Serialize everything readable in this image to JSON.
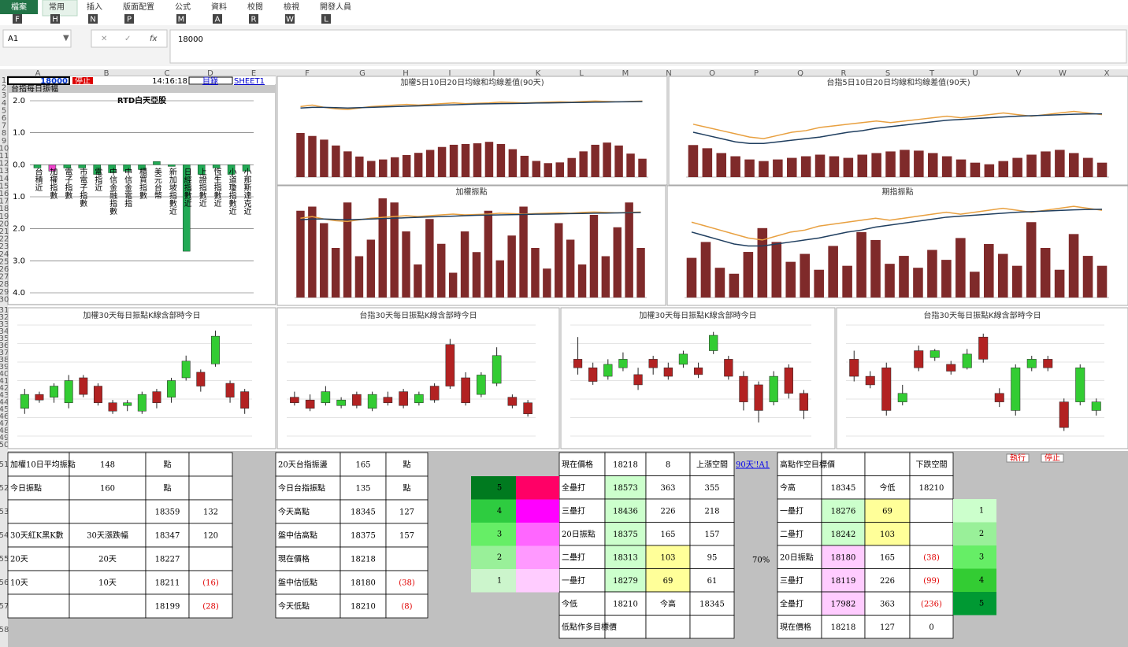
{
  "ribbon": {
    "tabs": [
      {
        "label": "檔案",
        "key": "F"
      },
      {
        "label": "常用",
        "key": "H"
      },
      {
        "label": "插入",
        "key": "N"
      },
      {
        "label": "版面配置",
        "key": "P"
      },
      {
        "label": "公式",
        "key": "M"
      },
      {
        "label": "資料",
        "key": "A"
      },
      {
        "label": "校閱",
        "key": "R"
      },
      {
        "label": "檢視",
        "key": "W"
      },
      {
        "label": "開發人員",
        "key": "L"
      }
    ]
  },
  "formula_bar": {
    "name_box": "A1",
    "formula": "18000"
  },
  "columns": [
    "A",
    "B",
    "C",
    "D",
    "E",
    "F",
    "G",
    "H",
    "I",
    "J",
    "K",
    "L",
    "M",
    "N",
    "O",
    "P",
    "Q",
    "R",
    "S",
    "T",
    "U",
    "V",
    "W",
    "X"
  ],
  "rows": [
    1,
    2,
    3,
    4,
    5,
    6,
    7,
    8,
    9,
    10,
    11,
    12,
    13,
    14,
    15,
    16,
    17,
    18,
    19,
    20,
    21,
    22,
    23,
    24,
    25,
    26,
    27,
    28,
    29,
    30,
    31,
    32,
    33,
    34,
    35,
    36,
    37,
    38,
    39,
    40,
    41,
    42,
    43,
    44,
    45,
    46,
    47,
    48,
    49,
    50,
    51,
    52,
    53,
    54,
    55,
    56,
    57,
    58
  ],
  "header_cells": {
    "a1": 18000,
    "stop_button": "停止",
    "time": "14:16:18",
    "link": "目錄",
    "sheet": "SHEET1",
    "panel_title": "台指每日振幅"
  },
  "charts": [
    {
      "type": "bar",
      "title": "RTD白天亞股",
      "categories": [
        "台積近",
        "加權指數",
        "電子指數",
        "市電子指數",
        "電指近",
        "中信金融指數",
        "中信金電指",
        "櫃買指數",
        "美元台幣",
        "新加坡指數近",
        "日經指數近",
        "上證指數近",
        "恆生指數近",
        "小道瓊指數近",
        "小那斯達克近"
      ],
      "values": [
        -0.1,
        -0.2,
        -0.1,
        -0.1,
        -0.3,
        -0.25,
        -0.2,
        -0.15,
        0.1,
        -0.05,
        -2.7,
        -0.3,
        -0.1,
        -0.3,
        -0.2
      ],
      "colors": [
        "#22aa55",
        "#ee44cc",
        "#22aa55",
        "#22aa55",
        "#22aa55",
        "#22aa55",
        "#22aa55",
        "#22aa55",
        "#22aa55",
        "#22aa55",
        "#22aa55",
        "#22aa55",
        "#22aa55",
        "#22aa55",
        "#22aa55"
      ],
      "ylim": [
        -4,
        2
      ],
      "yticks": [
        {
          "value": 2,
          "label": "2.0"
        },
        {
          "value": 1,
          "label": "1.0"
        },
        {
          "value": 0,
          "label": "0.0"
        },
        {
          "value": -1,
          "label": "1.0"
        },
        {
          "value": -2,
          "label": "2.0"
        },
        {
          "value": -3,
          "label": "3.0"
        },
        {
          "value": -4,
          "label": "4.0"
        }
      ],
      "grid": true
    },
    {
      "type": "bar_line",
      "title": "加權5日10日20日均線和均線差值(90天)",
      "color": "#7f2a2a",
      "ylim": [
        8000,
        20000
      ],
      "values": [
        14000,
        13600,
        13100,
        12300,
        11500,
        10800,
        10200,
        10400,
        10700,
        11000,
        11300,
        11700,
        12100,
        12400,
        12500,
        12600,
        12800,
        12500,
        11800,
        10900,
        10200,
        9900,
        10000,
        10600,
        11500,
        12400,
        12700,
        12300,
        11200,
        10500
      ],
      "series": [
        {
          "color": "#e8a040",
          "values": [
            17600,
            17800,
            17500,
            17300,
            17200,
            17400,
            17600,
            17700,
            17800,
            17900,
            17800,
            17900,
            18000,
            18100,
            18000,
            18050,
            18100,
            18200,
            18150,
            18100,
            18150,
            18200,
            18250,
            18200,
            18300,
            18350,
            18300,
            18250,
            18300,
            18350
          ]
        },
        {
          "color": "#1f3e5f",
          "values": [
            17400,
            17500,
            17500,
            17450,
            17400,
            17450,
            17500,
            17550,
            17600,
            17650,
            17700,
            17750,
            17800,
            17850,
            17900,
            17950,
            17980,
            18000,
            18020,
            18050,
            18080,
            18100,
            18120,
            18150,
            18170,
            18200,
            18220,
            18240,
            18260,
            18280
          ]
        }
      ]
    },
    {
      "type": "bar_line",
      "title": "台指5日10日20日均線和均線差值(90天)",
      "color": "#7f2a2a",
      "ylim": [
        14500,
        20000
      ],
      "values": [
        16500,
        16300,
        16000,
        15800,
        15600,
        15500,
        15600,
        15700,
        15800,
        15900,
        15800,
        15700,
        15900,
        16000,
        16100,
        16200,
        16150,
        16000,
        15800,
        15600,
        15400,
        15300,
        15500,
        15700,
        15900,
        16100,
        16200,
        16000,
        15700,
        15400
      ],
      "series": [
        {
          "color": "#e8a040",
          "values": [
            17800,
            17600,
            17400,
            17200,
            17000,
            16900,
            17100,
            17300,
            17400,
            17600,
            17700,
            17800,
            17900,
            18000,
            17900,
            18000,
            18100,
            18200,
            18300,
            18200,
            18300,
            18400,
            18500,
            18400,
            18300,
            18400,
            18500,
            18600,
            18500,
            18400
          ]
        },
        {
          "color": "#1f3e5f",
          "values": [
            17300,
            17100,
            16900,
            16700,
            16600,
            16600,
            16700,
            16800,
            16900,
            17000,
            17150,
            17300,
            17400,
            17550,
            17650,
            17750,
            17850,
            17950,
            18050,
            18100,
            18150,
            18200,
            18250,
            18300,
            18330,
            18360,
            18390,
            18420,
            18440,
            18450
          ]
        }
      ]
    },
    {
      "type": "bar_line",
      "title": "加權振點",
      "color": "#7f2a2a",
      "ylim": [
        8000,
        20000
      ],
      "values": [
        18500,
        19000,
        17000,
        14000,
        19500,
        13000,
        15000,
        20000,
        19500,
        16000,
        12000,
        17500,
        14500,
        11000,
        16000,
        13500,
        18500,
        12500,
        15500,
        19000,
        14000,
        11500,
        17000,
        15000,
        12000,
        18000,
        13000,
        16500,
        19500,
        14000
      ],
      "series": [
        {
          "color": "#e8a040",
          "values": [
            17600,
            17800,
            17500,
            17300,
            17200,
            17400,
            17600,
            17700,
            17800,
            17900,
            17800,
            17900,
            18000,
            18100,
            18000,
            18050,
            18100,
            18200,
            18150,
            18100,
            18150,
            18200,
            18250,
            18200,
            18300,
            18350,
            18300,
            18250,
            18300,
            18350
          ]
        },
        {
          "color": "#1f3e5f",
          "values": [
            17400,
            17500,
            17500,
            17450,
            17400,
            17450,
            17500,
            17550,
            17600,
            17650,
            17700,
            17750,
            17800,
            17850,
            17900,
            17950,
            17980,
            18000,
            18020,
            18050,
            18080,
            18100,
            18120,
            18150,
            18170,
            18200,
            18220,
            18240,
            18260,
            18280
          ]
        }
      ]
    },
    {
      "type": "bar_line",
      "title": "期指振點",
      "color": "#7f2a2a",
      "ylim": [
        14000,
        19000
      ],
      "values": [
        16000,
        16800,
        15500,
        15200,
        16300,
        17500,
        16800,
        15800,
        16200,
        15400,
        16600,
        15600,
        17300,
        16900,
        15700,
        16100,
        15500,
        16400,
        15900,
        17000,
        15300,
        16700,
        16200,
        15600,
        17800,
        16500,
        15400,
        17200,
        16100,
        15600
      ],
      "series": [
        {
          "color": "#e8a040",
          "values": [
            17800,
            17600,
            17400,
            17200,
            17000,
            16900,
            17100,
            17300,
            17400,
            17600,
            17700,
            17800,
            17900,
            18000,
            17900,
            18000,
            18100,
            18200,
            18300,
            18200,
            18300,
            18400,
            18500,
            18400,
            18300,
            18400,
            18500,
            18600,
            18500,
            18400
          ]
        },
        {
          "color": "#1f3e5f",
          "values": [
            17300,
            17100,
            16900,
            16700,
            16600,
            16600,
            16700,
            16800,
            16900,
            17000,
            17150,
            17300,
            17400,
            17550,
            17650,
            17750,
            17850,
            17950,
            18050,
            18100,
            18150,
            18200,
            18250,
            18300,
            18330,
            18360,
            18390,
            18420,
            18440,
            18450
          ]
        }
      ]
    },
    {
      "type": "candlestick",
      "title": "加權30天每日振點K線含部時今日",
      "up_color": "#33cc33",
      "down_color": "#b22222",
      "ylim": [
        -60,
        340
      ],
      "open": [
        40,
        90,
        80,
        60,
        150,
        120,
        60,
        50,
        30,
        100,
        80,
        150,
        170,
        200,
        130,
        100
      ],
      "close": [
        90,
        70,
        120,
        140,
        90,
        60,
        30,
        60,
        90,
        60,
        140,
        210,
        120,
        300,
        80,
        40
      ],
      "high": [
        110,
        100,
        130,
        160,
        160,
        130,
        70,
        70,
        100,
        110,
        150,
        230,
        180,
        320,
        140,
        110
      ],
      "low": [
        20,
        60,
        60,
        40,
        80,
        50,
        20,
        30,
        20,
        40,
        60,
        140,
        100,
        190,
        60,
        20
      ]
    },
    {
      "type": "candlestick",
      "title": "台指30天每日振點K線含部時今日",
      "up_color": "#33cc33",
      "down_color": "#b22222",
      "ylim": [
        -60,
        340
      ],
      "open": [
        80,
        70,
        60,
        50,
        90,
        40,
        80,
        100,
        60,
        120,
        270,
        150,
        90,
        130,
        80,
        60
      ],
      "close": [
        60,
        40,
        100,
        70,
        50,
        90,
        60,
        50,
        90,
        70,
        120,
        60,
        160,
        230,
        50,
        20
      ],
      "high": [
        100,
        90,
        120,
        80,
        100,
        100,
        100,
        110,
        100,
        130,
        290,
        170,
        170,
        260,
        90,
        70
      ],
      "low": [
        50,
        30,
        50,
        40,
        40,
        30,
        50,
        40,
        50,
        60,
        110,
        50,
        80,
        120,
        40,
        10
      ]
    },
    {
      "type": "candlestick",
      "title": "加權30天每日振點K線含部時今日",
      "up_color": "#33cc33",
      "down_color": "#b22222",
      "ylim": [
        -300,
        350
      ],
      "open": [
        150,
        100,
        50,
        100,
        60,
        150,
        100,
        120,
        100,
        200,
        150,
        50,
        0,
        -100,
        100,
        -50
      ],
      "close": [
        100,
        20,
        120,
        150,
        0,
        100,
        50,
        180,
        60,
        290,
        50,
        -100,
        -150,
        50,
        -50,
        -150
      ],
      "high": [
        280,
        130,
        150,
        190,
        100,
        170,
        130,
        200,
        130,
        310,
        170,
        80,
        20,
        80,
        120,
        -30
      ],
      "low": [
        60,
        0,
        30,
        80,
        -30,
        60,
        30,
        100,
        40,
        180,
        30,
        -150,
        -220,
        -120,
        -80,
        -200
      ]
    },
    {
      "type": "candlestick",
      "title": "台指30天每日振點K線含部時今日",
      "up_color": "#33cc33",
      "down_color": "#b22222",
      "ylim": [
        -300,
        350
      ],
      "open": [
        150,
        50,
        100,
        -100,
        200,
        160,
        120,
        100,
        280,
        -50,
        -150,
        100,
        150,
        -100,
        -100,
        -150
      ],
      "close": [
        50,
        0,
        -150,
        -50,
        100,
        200,
        80,
        180,
        150,
        -100,
        100,
        150,
        100,
        -250,
        100,
        -100
      ],
      "high": [
        200,
        80,
        130,
        0,
        230,
        210,
        140,
        210,
        300,
        -20,
        120,
        170,
        170,
        -80,
        120,
        -80
      ],
      "low": [
        20,
        -20,
        -180,
        -120,
        80,
        140,
        60,
        90,
        130,
        -130,
        -180,
        80,
        80,
        -270,
        -120,
        -180
      ]
    }
  ],
  "tables": [
    {
      "rows": [
        [
          "加權10日平均振點",
          148,
          "點",
          null
        ],
        [
          "今日振點",
          160,
          "點",
          null
        ],
        [
          null,
          null,
          18359,
          132
        ],
        [
          "30天紅K黑K數",
          "30天漲跌幅",
          18347,
          120
        ],
        [
          "20天",
          "20天",
          18227,
          null
        ],
        [
          "10天",
          "10天",
          18211,
          "(16)"
        ],
        [
          null,
          null,
          18199,
          "(28)"
        ]
      ]
    },
    {
      "rows": [
        [
          "20天台指振盪",
          165,
          "點"
        ],
        [
          "今日台指振點",
          135,
          "點"
        ],
        [
          "今天高點",
          18345,
          127
        ],
        [
          "盤中估高點",
          18375,
          157
        ],
        [
          "現在價格",
          18218,
          null
        ],
        [
          "盤中估低點",
          18180,
          "(38)"
        ],
        [
          "今天低點",
          18210,
          "(8)"
        ]
      ]
    },
    {
      "rows": [
        [
          "現在價格",
          18218,
          8,
          "上漲空間"
        ],
        [
          "全壘打",
          18573,
          363,
          355
        ],
        [
          "三壘打",
          18436,
          226,
          218
        ],
        [
          "20日振點",
          18375,
          165,
          157
        ],
        [
          "二壘打",
          18313,
          103,
          95
        ],
        [
          "一壘打",
          18279,
          69,
          61
        ],
        [
          "今低",
          18210,
          "今高",
          18345
        ],
        [
          "低點作多目標價",
          null,
          null,
          null
        ]
      ]
    },
    {
      "rows": [
        [
          "高點作空目標價",
          null,
          null,
          "下跌空間"
        ],
        [
          "今高",
          18345,
          "今低",
          18210
        ],
        [
          "一壘打",
          18276,
          69,
          null
        ],
        [
          "二壘打",
          18242,
          103,
          null
        ],
        [
          "20日振點",
          18180,
          165,
          "(38)"
        ],
        [
          "三壘打",
          18119,
          226,
          "(99)"
        ],
        [
          "全壘打",
          17982,
          363,
          "(236)"
        ],
        [
          "現在價格",
          18218,
          127,
          0
        ]
      ]
    }
  ],
  "level_block": [
    5,
    4,
    3,
    2,
    1
  ],
  "level_column": [
    1,
    2,
    3,
    4,
    5
  ],
  "link": "90天'!A1",
  "percent": "70%",
  "buttons": [
    "執行",
    "停止"
  ]
}
